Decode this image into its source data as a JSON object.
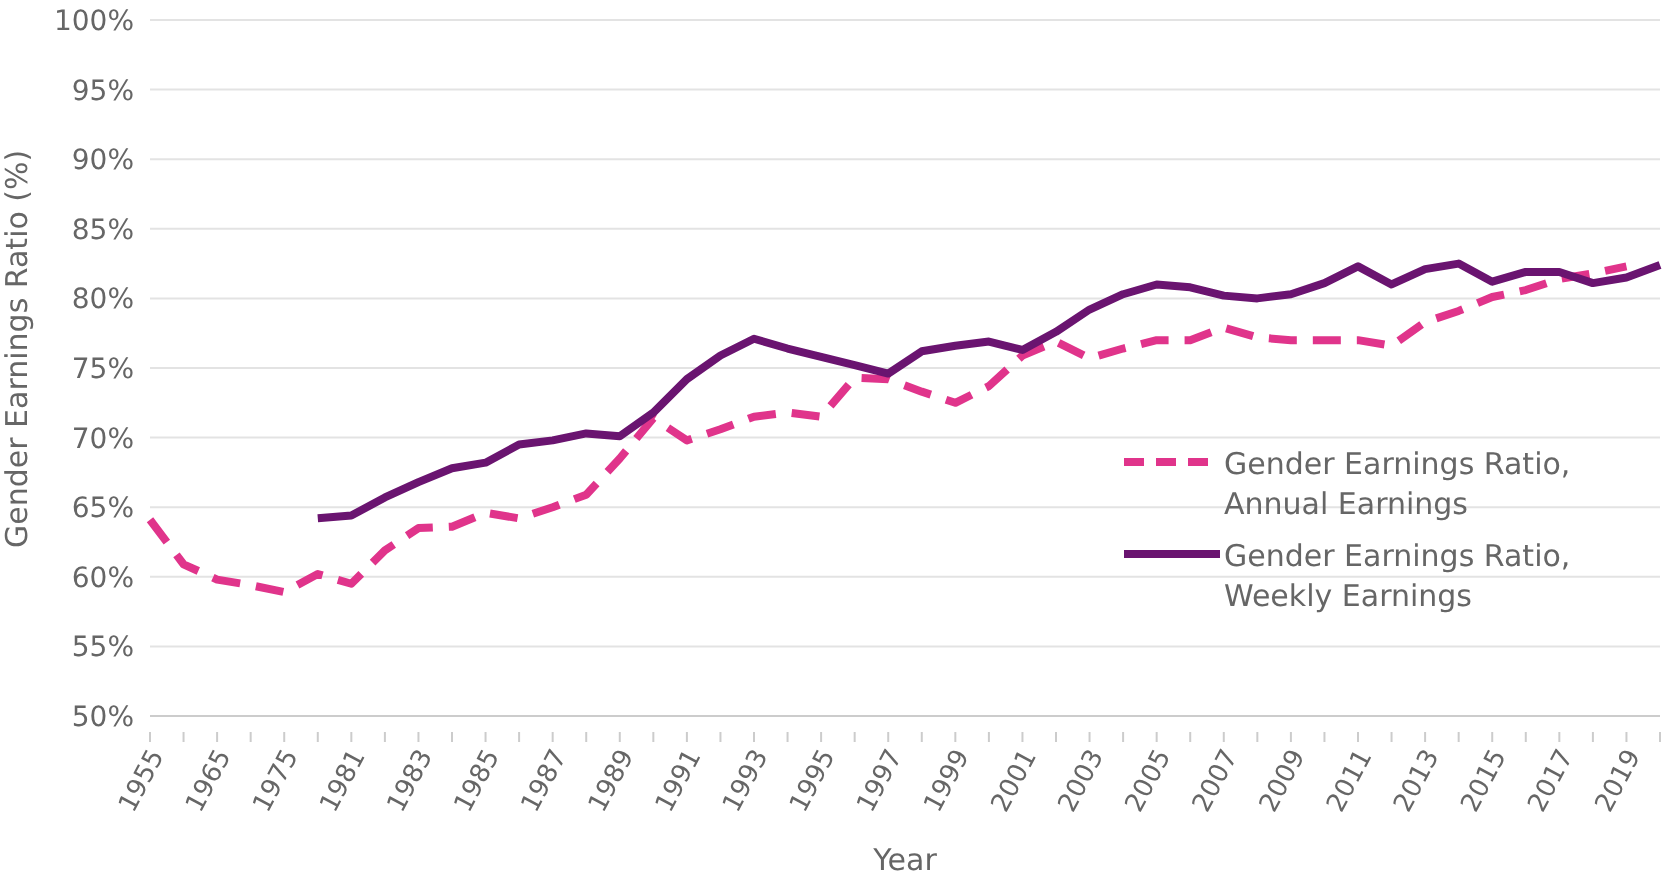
{
  "chart_data": {
    "type": "line",
    "xlabel": "Year",
    "ylabel": "Gender Earnings Ratio (%)",
    "categories": [
      "1955",
      null,
      "1965",
      null,
      "1975",
      null,
      "1981",
      null,
      "1983",
      null,
      "1985",
      null,
      "1987",
      null,
      "1989",
      null,
      "1991",
      null,
      "1993",
      null,
      "1995",
      null,
      "1997",
      null,
      "1999",
      null,
      "2001",
      null,
      "2003",
      null,
      "2005",
      null,
      "2007",
      null,
      "2009",
      null,
      "2011",
      null,
      "2013",
      null,
      "2015",
      null,
      "2017",
      null,
      "2019",
      null
    ],
    "series": [
      {
        "name": "Gender Earnings Ratio, Annual Earnings",
        "color": "#e0348b",
        "line_style": "dashed",
        "values": [
          64.1,
          60.9,
          59.8,
          59.4,
          58.9,
          60.2,
          59.5,
          61.9,
          63.5,
          63.6,
          64.6,
          64.2,
          65.0,
          65.9,
          68.5,
          71.4,
          69.8,
          70.6,
          71.5,
          71.8,
          71.5,
          74.3,
          74.2,
          73.3,
          72.5,
          73.7,
          75.9,
          76.9,
          75.7,
          76.4,
          77.0,
          77.0,
          77.9,
          77.2,
          77.0,
          77.0,
          77.0,
          76.6,
          78.3,
          79.1,
          80.1,
          80.6,
          81.4,
          81.8,
          82.3,
          null
        ]
      },
      {
        "name": "Gender Earnings Ratio, Weekly Earnings",
        "color": "#6a1470",
        "line_style": "solid",
        "values": [
          null,
          null,
          null,
          null,
          null,
          64.2,
          64.4,
          65.7,
          66.8,
          67.8,
          68.2,
          69.5,
          69.8,
          70.3,
          70.1,
          71.8,
          74.2,
          75.9,
          77.1,
          76.4,
          75.8,
          75.2,
          74.6,
          76.2,
          76.6,
          76.9,
          76.3,
          77.6,
          79.2,
          80.3,
          81.0,
          80.8,
          80.2,
          80.0,
          80.3,
          81.1,
          82.3,
          81.0,
          82.1,
          82.5,
          81.2,
          81.9,
          81.9,
          81.1,
          81.5,
          82.4
        ]
      }
    ],
    "ylim": [
      50,
      100
    ],
    "yticks": [
      {
        "value": 50,
        "label": "50%"
      },
      {
        "value": 55,
        "label": "55%"
      },
      {
        "value": 60,
        "label": "60%"
      },
      {
        "value": 65,
        "label": "65%"
      },
      {
        "value": 70,
        "label": "70%"
      },
      {
        "value": 75,
        "label": "75%"
      },
      {
        "value": 80,
        "label": "80%"
      },
      {
        "value": 85,
        "label": "85%"
      },
      {
        "value": 90,
        "label": "90%"
      },
      {
        "value": 95,
        "label": "95%"
      },
      {
        "value": 100,
        "label": "100%"
      }
    ],
    "grid": "y",
    "legend": "right",
    "marker": "none"
  }
}
